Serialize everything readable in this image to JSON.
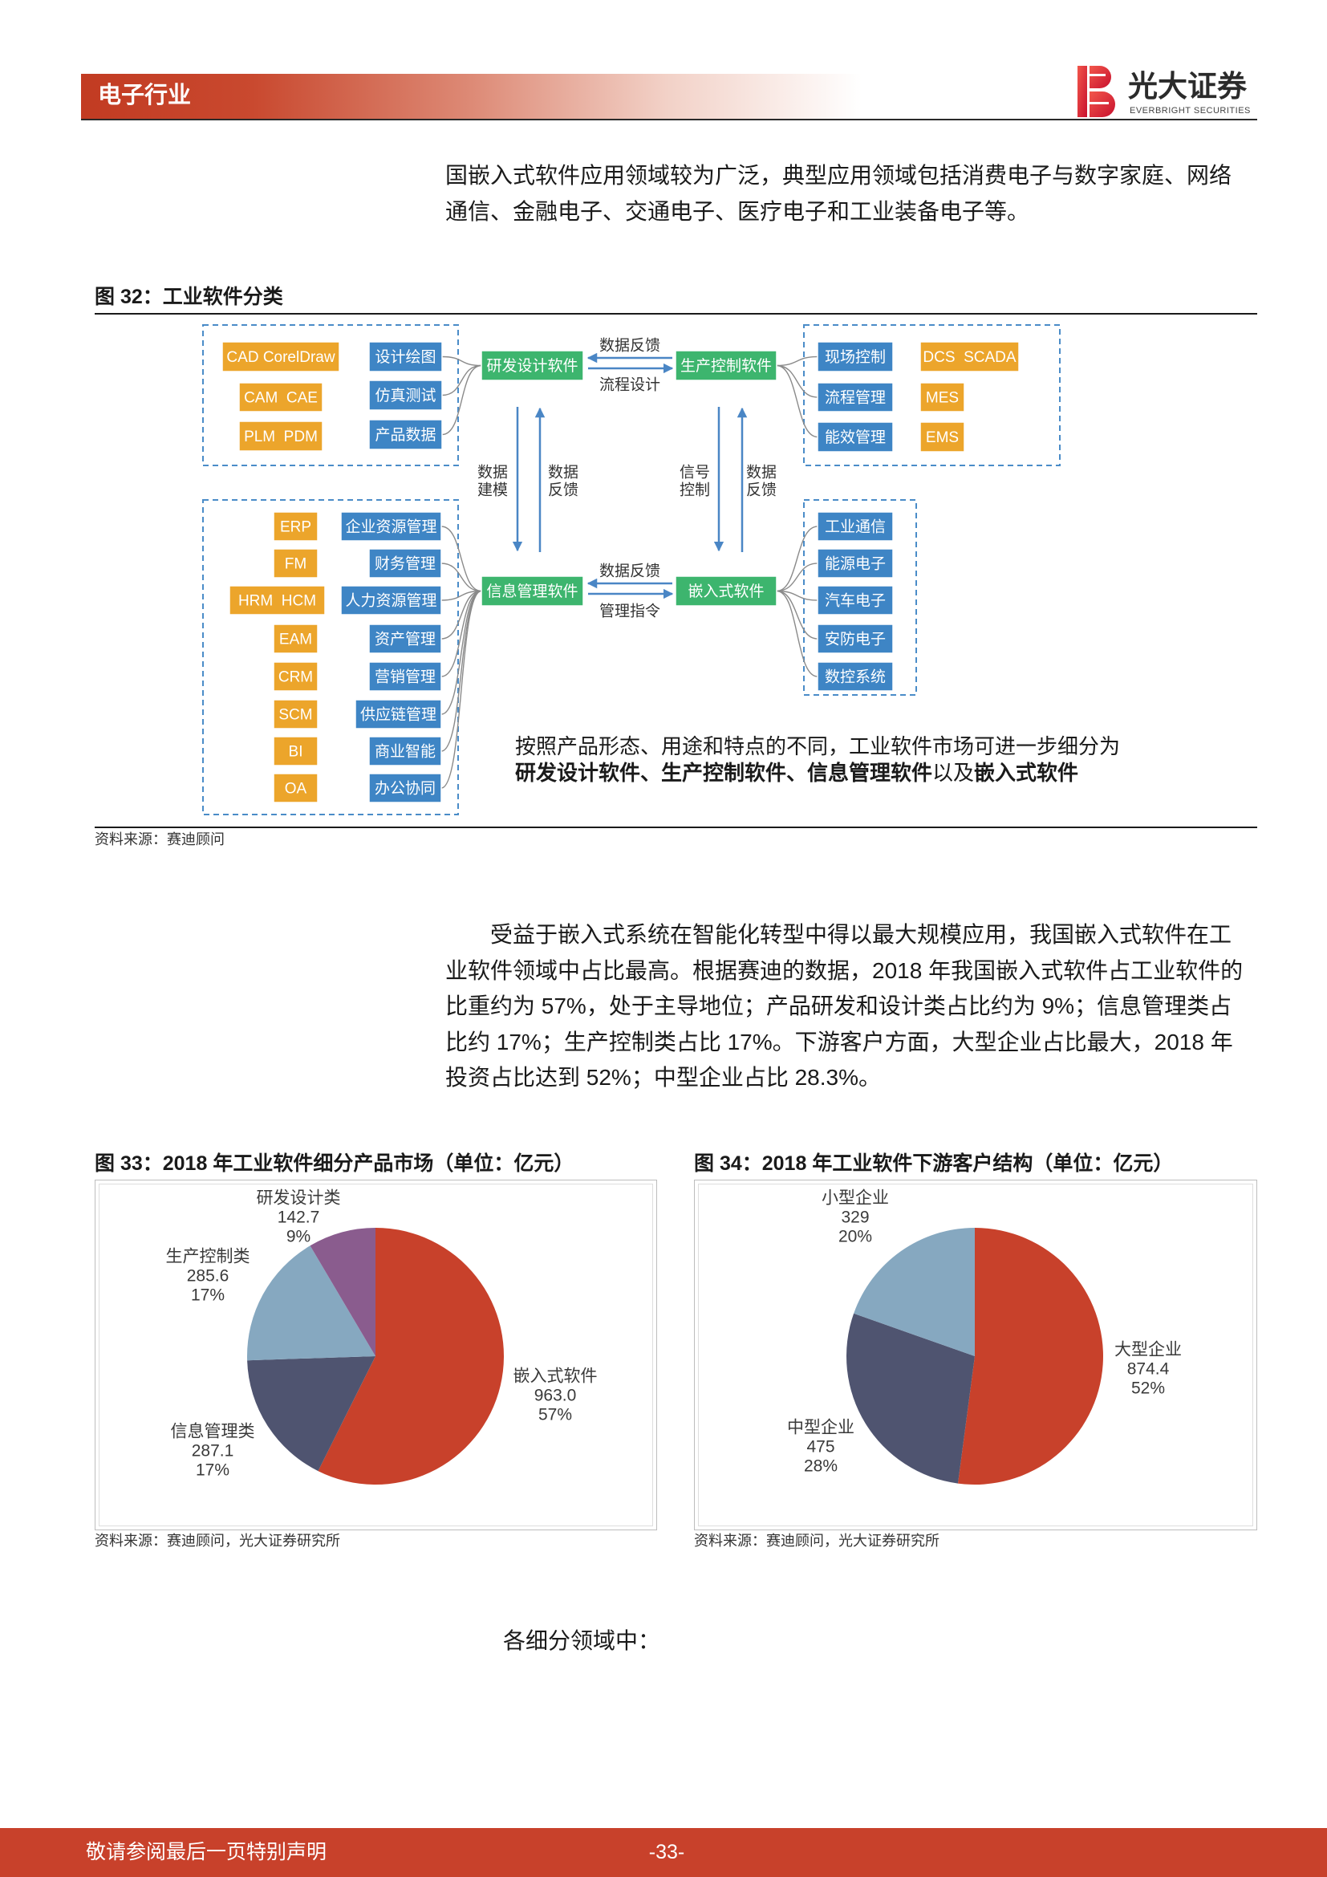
{
  "header": {
    "section_title": "电子行业",
    "logo_name_cn": "光大证券",
    "logo_name_en": "EVERBRIGHT SECURITIES"
  },
  "colors": {
    "brand_red": "#C8412B",
    "tool_box": "#ECA52B",
    "module_box": "#3E85C5",
    "category_box": "#3DB56E",
    "frame": "#4A8CC8",
    "flow_arrow": "#4A86C5"
  },
  "intro_paragraph": {
    "lines": [
      "国嵌入式软件应用领域较为广泛，典型应用领域包括消费电子与数字家庭、网络",
      "通信、金融电子、交通电子、医疗电子和工业装备电子等。"
    ]
  },
  "figure32": {
    "caption": "图 32：工业软件分类",
    "rd_design": {
      "title": "研发设计软件",
      "tools": [
        "CAD CorelDraw",
        "CAM  CAE",
        "PLM  PDM"
      ],
      "modules": [
        "设计绘图",
        "仿真测试",
        "产品数据"
      ]
    },
    "production_control": {
      "title": "生产控制软件",
      "modules": [
        "现场控制",
        "流程管理",
        "能效管理"
      ],
      "tools": [
        "DCS  SCADA",
        "MES",
        "EMS"
      ]
    },
    "info_management": {
      "title": "信息管理软件",
      "tools": [
        "ERP",
        "FM",
        "HRM  HCM",
        "EAM",
        "CRM",
        "SCM",
        "BI",
        "OA"
      ],
      "modules": [
        "企业资源管理",
        "财务管理",
        "人力资源管理",
        "资产管理",
        "营销管理",
        "供应链管理",
        "商业智能",
        "办公协同"
      ]
    },
    "embedded": {
      "title": "嵌入式软件",
      "modules": [
        "工业通信",
        "能源电子",
        "汽车电子",
        "安防电子",
        "数控系统"
      ]
    },
    "flows": {
      "rd_pc_upper": "数据反馈",
      "rd_pc_lower": "流程设计",
      "im_em_upper": "数据反馈",
      "im_em_lower": "管理指令",
      "rd_im_down": [
        "数据",
        "建模"
      ],
      "rd_im_up": [
        "数据",
        "反馈"
      ],
      "pc_em_down": [
        "信号",
        "控制"
      ],
      "pc_em_up": [
        "数据",
        "反馈"
      ]
    },
    "note": {
      "line1": "按照产品形态、用途和特点的不同，工业软件市场可进一步细分为",
      "line2_bold_first": "研发设计软件、生产控制软件、信息管理软件",
      "line2_plain": "以及",
      "line2_bold_last": "嵌入式软件"
    },
    "source": "资料来源：赛迪顾问"
  },
  "body_paragraph": {
    "lines": [
      "受益于嵌入式系统在智能化转型中得以最大规模应用，我国嵌入式软件在工",
      "业软件领域中占比最高。根据赛迪的数据，2018 年我国嵌入式软件占工业软件的",
      "比重约为 57%，处于主导地位；产品研发和设计类占比约为 9%；信息管理类占",
      "比约 17%；生产控制类占比 17%。下游客户方面，大型企业占比最大，2018 年",
      "投资占比达到 52%；中型企业占比 28.3%。"
    ]
  },
  "chart_data": [
    {
      "type": "pie",
      "title": "图 33：2018 年工业软件细分产品市场（单位：亿元）",
      "categories": [
        "嵌入式软件",
        "信息管理类",
        "生产控制类",
        "研发设计类"
      ],
      "values": [
        963.0,
        287.1,
        285.6,
        142.7
      ],
      "value_labels": [
        "963.0",
        "287.1",
        "285.6",
        "142.7"
      ],
      "percent_labels": [
        "57%",
        "17%",
        "17%",
        "9%"
      ],
      "colors": [
        "#C8412B",
        "#4F5470",
        "#86A8C0",
        "#8A5C8E"
      ],
      "start": "top",
      "direction": "clockwise",
      "legend": "none"
    },
    {
      "type": "pie",
      "title": "图 34：2018 年工业软件下游客户结构（单位：亿元）",
      "categories": [
        "大型企业",
        "中型企业",
        "小型企业"
      ],
      "values": [
        874.4,
        475,
        329
      ],
      "value_labels": [
        "874.4",
        "475",
        "329"
      ],
      "percent_labels": [
        "52%",
        "28%",
        "20%"
      ],
      "colors": [
        "#C8412B",
        "#4F5470",
        "#86A8C0"
      ],
      "start": "top",
      "direction": "clockwise",
      "legend": "none"
    }
  ],
  "figure33": {
    "source": "资料来源：赛迪顾问，光大证券研究所"
  },
  "figure34": {
    "source": "资料来源：赛迪顾问，光大证券研究所"
  },
  "closing_text": "各细分领域中：",
  "footer": {
    "disclaimer": "敬请参阅最后一页特别声明",
    "page_number": "-33-"
  }
}
